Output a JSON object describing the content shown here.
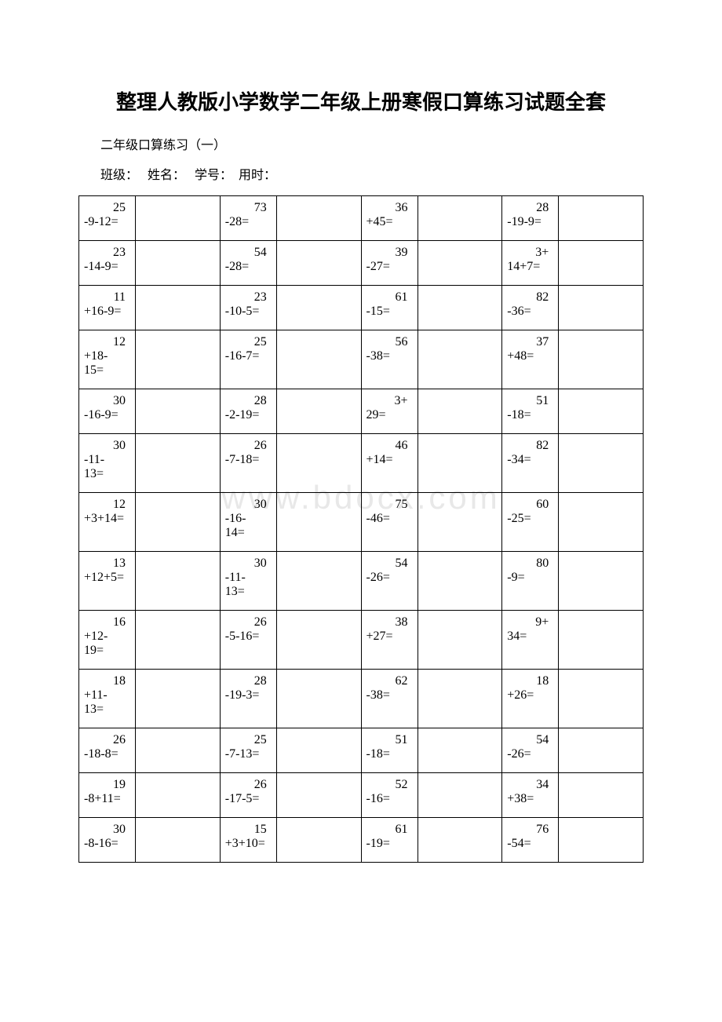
{
  "title": "整理人教版小学数学二年级上册寒假口算练习试题全套",
  "subtitle": "二年级口算练习（一）",
  "form_labels": {
    "class": "班级：",
    "name": "姓名：",
    "student_no": "学号：",
    "time": "用时："
  },
  "watermark": "www.bdocx.com",
  "table": {
    "rows": [
      [
        {
          "num": "25",
          "expr": "-9-12="
        },
        {
          "num": "73",
          "expr": "-28="
        },
        {
          "num": "36",
          "expr": "+45="
        },
        {
          "num": "28",
          "expr": "-19-9="
        }
      ],
      [
        {
          "num": "23",
          "expr": "-14-9="
        },
        {
          "num": "54",
          "expr": "-28="
        },
        {
          "num": "39",
          "expr": "-27="
        },
        {
          "num": "3+",
          "expr": "14+7="
        }
      ],
      [
        {
          "num": "11",
          "expr": "+16-9="
        },
        {
          "num": "23",
          "expr": "-10-5="
        },
        {
          "num": "61",
          "expr": "-15="
        },
        {
          "num": "82",
          "expr": "-36="
        }
      ],
      [
        {
          "num": "12",
          "expr": "+18-\n15="
        },
        {
          "num": "25",
          "expr": "-16-7="
        },
        {
          "num": "56",
          "expr": "-38="
        },
        {
          "num": "37",
          "expr": "+48="
        }
      ],
      [
        {
          "num": "30",
          "expr": "-16-9="
        },
        {
          "num": "28",
          "expr": "-2-19="
        },
        {
          "num": "3+",
          "expr": "29="
        },
        {
          "num": "51",
          "expr": "-18="
        }
      ],
      [
        {
          "num": "30",
          "expr": "-11-\n13="
        },
        {
          "num": "26",
          "expr": "-7-18="
        },
        {
          "num": "46",
          "expr": "+14="
        },
        {
          "num": "82",
          "expr": "-34="
        }
      ],
      [
        {
          "num": "12",
          "expr": "+3+14="
        },
        {
          "num": "30",
          "expr": "-16-\n14="
        },
        {
          "num": "75",
          "expr": "-46="
        },
        {
          "num": "60",
          "expr": "-25="
        }
      ],
      [
        {
          "num": "13",
          "expr": "+12+5="
        },
        {
          "num": "30",
          "expr": "-11-\n13="
        },
        {
          "num": "54",
          "expr": "-26="
        },
        {
          "num": "80",
          "expr": "-9="
        }
      ],
      [
        {
          "num": "16",
          "expr": "+12-\n19="
        },
        {
          "num": "26",
          "expr": "-5-16="
        },
        {
          "num": "38",
          "expr": "+27="
        },
        {
          "num": "9+",
          "expr": "34="
        }
      ],
      [
        {
          "num": "18",
          "expr": "+11-\n13="
        },
        {
          "num": "28",
          "expr": "-19-3="
        },
        {
          "num": "62",
          "expr": "-38="
        },
        {
          "num": "18",
          "expr": "+26="
        }
      ],
      [
        {
          "num": "26",
          "expr": "-18-8="
        },
        {
          "num": "25",
          "expr": "-7-13="
        },
        {
          "num": "51",
          "expr": "-18="
        },
        {
          "num": "54",
          "expr": "-26="
        }
      ],
      [
        {
          "num": "19",
          "expr": "-8+11="
        },
        {
          "num": "26",
          "expr": "-17-5="
        },
        {
          "num": "52",
          "expr": "-16="
        },
        {
          "num": "34",
          "expr": "+38="
        }
      ],
      [
        {
          "num": "30",
          "expr": "-8-16="
        },
        {
          "num": "15",
          "expr": "+3+10="
        },
        {
          "num": "61",
          "expr": "-19="
        },
        {
          "num": "76",
          "expr": "-54="
        }
      ]
    ]
  }
}
